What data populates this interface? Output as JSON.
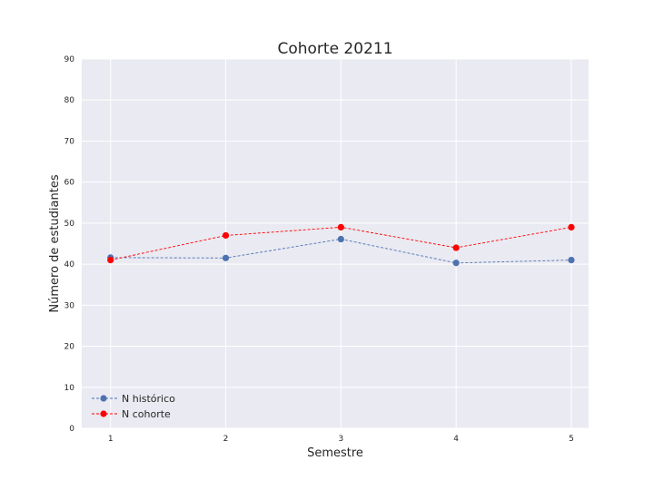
{
  "chart_data": {
    "type": "line",
    "title": "Cohorte 20211",
    "xlabel": "Semestre",
    "ylabel": "Número de estudiantes",
    "x": [
      1,
      2,
      3,
      4,
      5
    ],
    "x_tick_labels": [
      "1",
      "2",
      "3",
      "4",
      "5"
    ],
    "ylim": [
      0,
      90
    ],
    "y_ticks": [
      0,
      10,
      20,
      30,
      40,
      50,
      60,
      70,
      80,
      90
    ],
    "y_tick_labels": [
      "0",
      "10",
      "20",
      "30",
      "40",
      "50",
      "60",
      "70",
      "80",
      "90"
    ],
    "grid": true,
    "legend_position": "bottom-left",
    "series": [
      {
        "name": "N histórico",
        "values": [
          41.6,
          41.5,
          46.1,
          40.3,
          41.0
        ],
        "color": "#4c72b0",
        "marker": "circle",
        "linestyle": "dashed"
      },
      {
        "name": "N cohorte",
        "values": [
          41,
          47,
          49,
          44,
          49
        ],
        "color": "#ff0000",
        "marker": "circle",
        "linestyle": "dashed"
      }
    ],
    "colors": {
      "plot_background": "#eaeaf2",
      "grid": "#ffffff"
    }
  }
}
